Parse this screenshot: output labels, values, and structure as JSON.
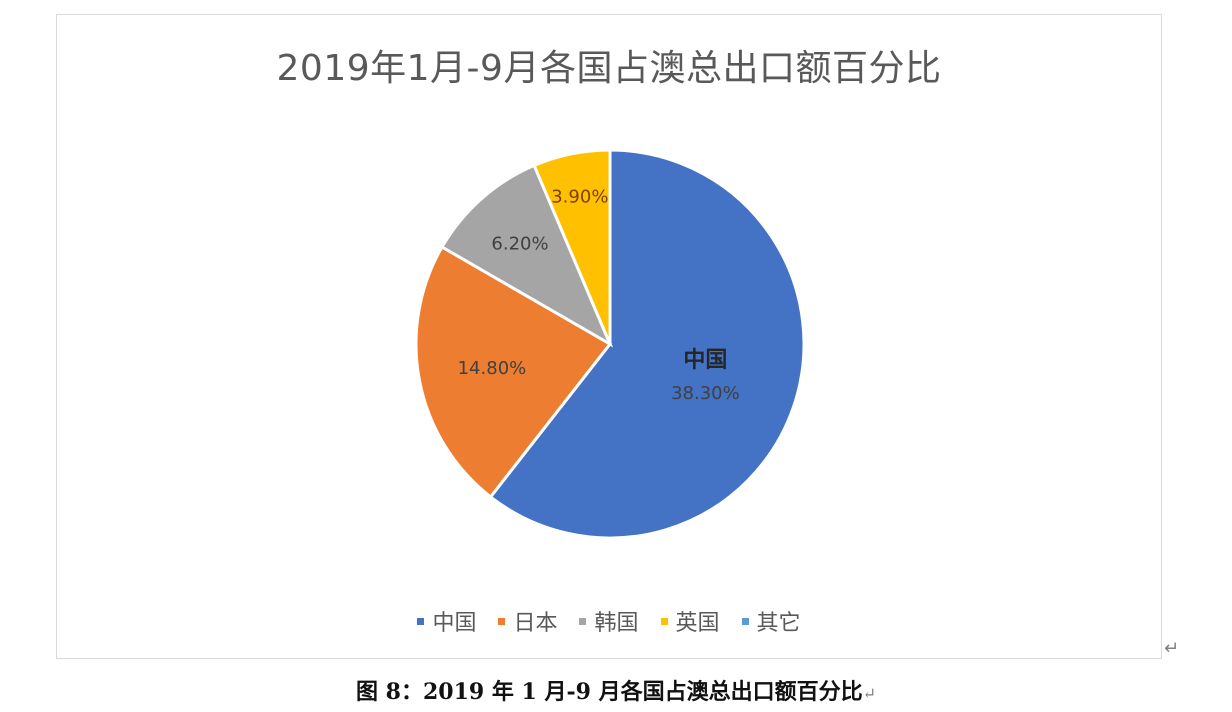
{
  "chart_data": {
    "type": "pie",
    "title": "2019年1月-9月各国占澳总出口额百分比",
    "categories": [
      "中国",
      "日本",
      "韩国",
      "英国",
      "其它"
    ],
    "values": [
      38.3,
      14.8,
      6.2,
      3.9,
      null
    ],
    "data_labels": [
      "38.30%",
      "14.80%",
      "6.20%",
      "3.90%",
      ""
    ],
    "colors": [
      "#4472C4",
      "#ED7D31",
      "#A5A5A5",
      "#FFC000",
      "#5B9BD5"
    ],
    "legend_position": "bottom"
  },
  "caption": {
    "text": "图 8：2019 年 1 月-9 月各国占澳总出口额百分比",
    "return_mark": "↵"
  },
  "frame_return_mark": "↵"
}
